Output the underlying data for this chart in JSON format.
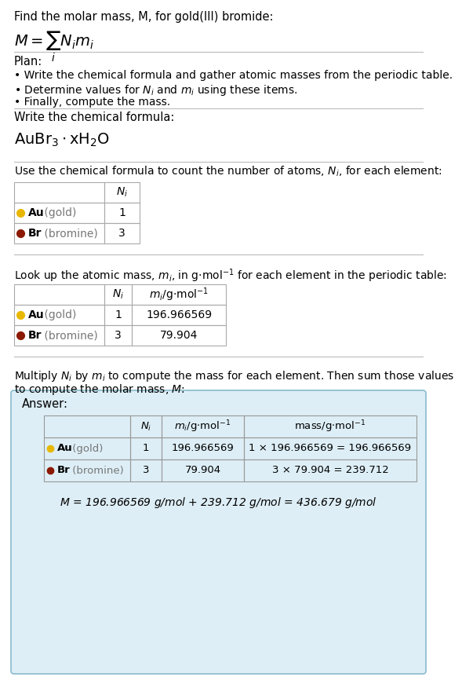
{
  "bg_color": "#ffffff",
  "separator_color": "#bbbbbb",
  "text_color": "#000000",
  "gray_color": "#777777",
  "au_dot_color": "#E8B800",
  "br_dot_color": "#8B1A00",
  "answer_bg": "#ddeef6",
  "answer_border": "#88bbcc",
  "title": "Find the molar mass, M, for gold(III) bromide:",
  "plan_title": "Plan:",
  "plan_bullets": [
    "• Write the chemical formula and gather atomic masses from the periodic table.",
    "• Determine values for Nᵢ and mᵢ using these items.",
    "• Finally, compute the mass."
  ],
  "sec2_label": "Write the chemical formula:",
  "sec3_label": "Use the chemical formula to count the number of atoms, Nᵢ, for each element:",
  "sec4_label": "Look up the atomic mass, mᵢ, in g·mol⁻¹ for each element in the periodic table:",
  "sec5_label1": "Multiply Nᵢ by mᵢ to compute the mass for each element. Then sum those values",
  "sec5_label2": "to compute the molar mass, M:",
  "elements": [
    {
      "symbol": "Au",
      "name": "gold",
      "Ni": "1",
      "mi": "196.966569",
      "mass_eq": "1 × 196.966569 = 196.966569",
      "dot_color": "#E8B800"
    },
    {
      "symbol": "Br",
      "name": "bromine",
      "Ni": "3",
      "mi": "79.904",
      "mass_eq": "3 × 79.904 = 239.712",
      "dot_color": "#8B1A00"
    }
  ],
  "final_eq": "M = 196.966569 g/mol + 239.712 g/mol = 436.679 g/mol",
  "answer_label": "Answer:"
}
